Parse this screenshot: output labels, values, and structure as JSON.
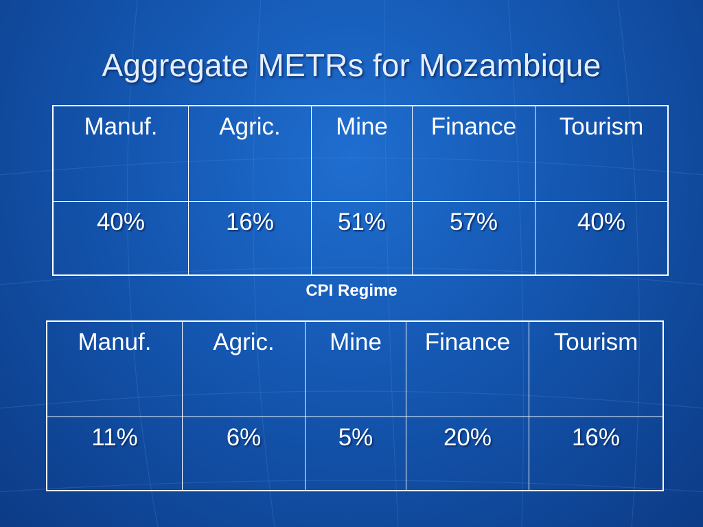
{
  "slide": {
    "title": "Aggregate METRs for Mozambique",
    "regime_label": "CPI Regime"
  },
  "table1": {
    "headers": [
      "Manuf.",
      "Agric.",
      "Mine",
      "Finance",
      "Tourism"
    ],
    "values": [
      "40%",
      "16%",
      "51%",
      "57%",
      "40%"
    ]
  },
  "table2": {
    "headers": [
      "Manuf.",
      "Agric.",
      "Mine",
      "Finance",
      "Tourism"
    ],
    "values": [
      "11%",
      "6%",
      "5%",
      "20%",
      "16%"
    ]
  },
  "colors": {
    "background": "#1456b0",
    "text": "#ffffff"
  }
}
